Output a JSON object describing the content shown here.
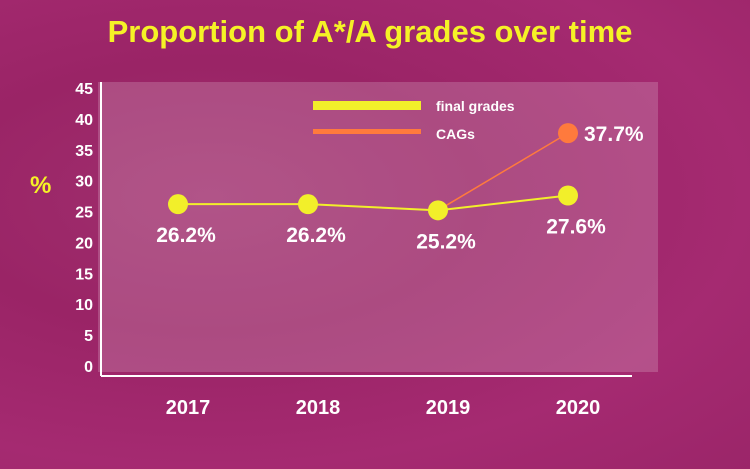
{
  "chart_data": {
    "type": "line",
    "title": "Proportion of A*/A grades over time",
    "ylabel": "%",
    "xlabel": "",
    "categories": [
      "2017",
      "2018",
      "2019",
      "2020"
    ],
    "ylim": [
      0,
      45
    ],
    "yticks": [
      0,
      5,
      10,
      15,
      20,
      25,
      30,
      35,
      40,
      45
    ],
    "grid": false,
    "legend_position": "top-right",
    "series": [
      {
        "name": "final grades",
        "color": "#f2ef2a",
        "values": [
          26.2,
          26.2,
          25.2,
          27.6
        ],
        "labels": [
          "26.2%",
          "26.2%",
          "25.2%",
          "27.6%"
        ]
      },
      {
        "name": "CAGs",
        "color": "#ff7a3d",
        "points": [
          {
            "category": "2019",
            "value": 25.2
          },
          {
            "category": "2020",
            "value": 37.7
          }
        ],
        "labels": [
          "",
          "37.7%"
        ]
      }
    ]
  },
  "colors": {
    "background": "#a02a6d",
    "panel": "rgba(255,255,255,0.18)",
    "title": "#f5f226",
    "text": "#ffffff"
  }
}
